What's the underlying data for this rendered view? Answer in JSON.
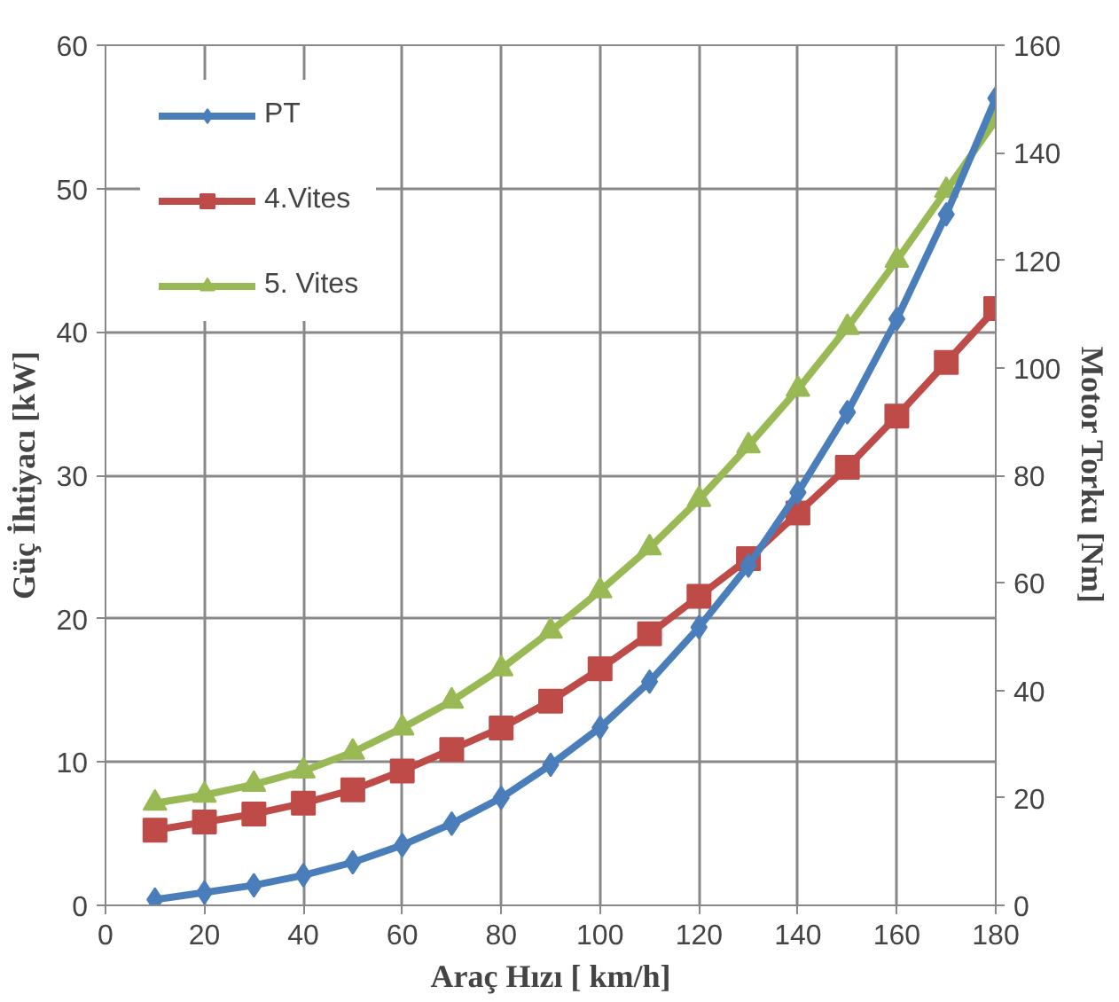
{
  "chart_data": {
    "type": "line",
    "xlabel": "Araç Hızı [ km/h]",
    "ylabel": "Güç İhtiyacı [kW]",
    "y2label": "Motor Torku [Nm]",
    "x": [
      10,
      20,
      30,
      40,
      50,
      60,
      70,
      80,
      90,
      100,
      110,
      120,
      130,
      140,
      150,
      160,
      170,
      180
    ],
    "series": [
      {
        "name": "PT",
        "color": "#4a7ebb",
        "marker": "diamond",
        "values": [
          0.4,
          0.9,
          1.4,
          2.1,
          3.0,
          4.2,
          5.7,
          7.5,
          9.8,
          12.4,
          15.6,
          19.4,
          23.7,
          28.8,
          34.4,
          40.9,
          48.2,
          56.3
        ]
      },
      {
        "name": "4.Vites",
        "color": "#be4b48",
        "marker": "square",
        "axis": "y2",
        "values": [
          14,
          15.5,
          17,
          19,
          21.5,
          25,
          29,
          33,
          38,
          44,
          50.5,
          57.5,
          64.5,
          73,
          81.5,
          91,
          101,
          111
        ]
      },
      {
        "name": "5. Vites",
        "color": "#98b954",
        "marker": "triangle",
        "axis": "y2",
        "values": [
          19,
          20.5,
          22.5,
          25,
          28.5,
          33,
          38,
          44,
          51,
          58.5,
          66.5,
          75.5,
          85.5,
          96,
          107.5,
          120,
          133,
          146
        ]
      }
    ],
    "xlim": [
      0,
      180
    ],
    "xticks": [
      0,
      20,
      40,
      60,
      80,
      100,
      120,
      140,
      160,
      180
    ],
    "ylim": [
      0,
      60
    ],
    "yticks": [
      0,
      10,
      20,
      30,
      40,
      50,
      60
    ],
    "y2lim": [
      0,
      160
    ],
    "y2ticks": [
      0,
      20,
      40,
      60,
      80,
      100,
      120,
      140,
      160
    ],
    "grid": true,
    "legend": "top left",
    "line_style": "solid"
  }
}
